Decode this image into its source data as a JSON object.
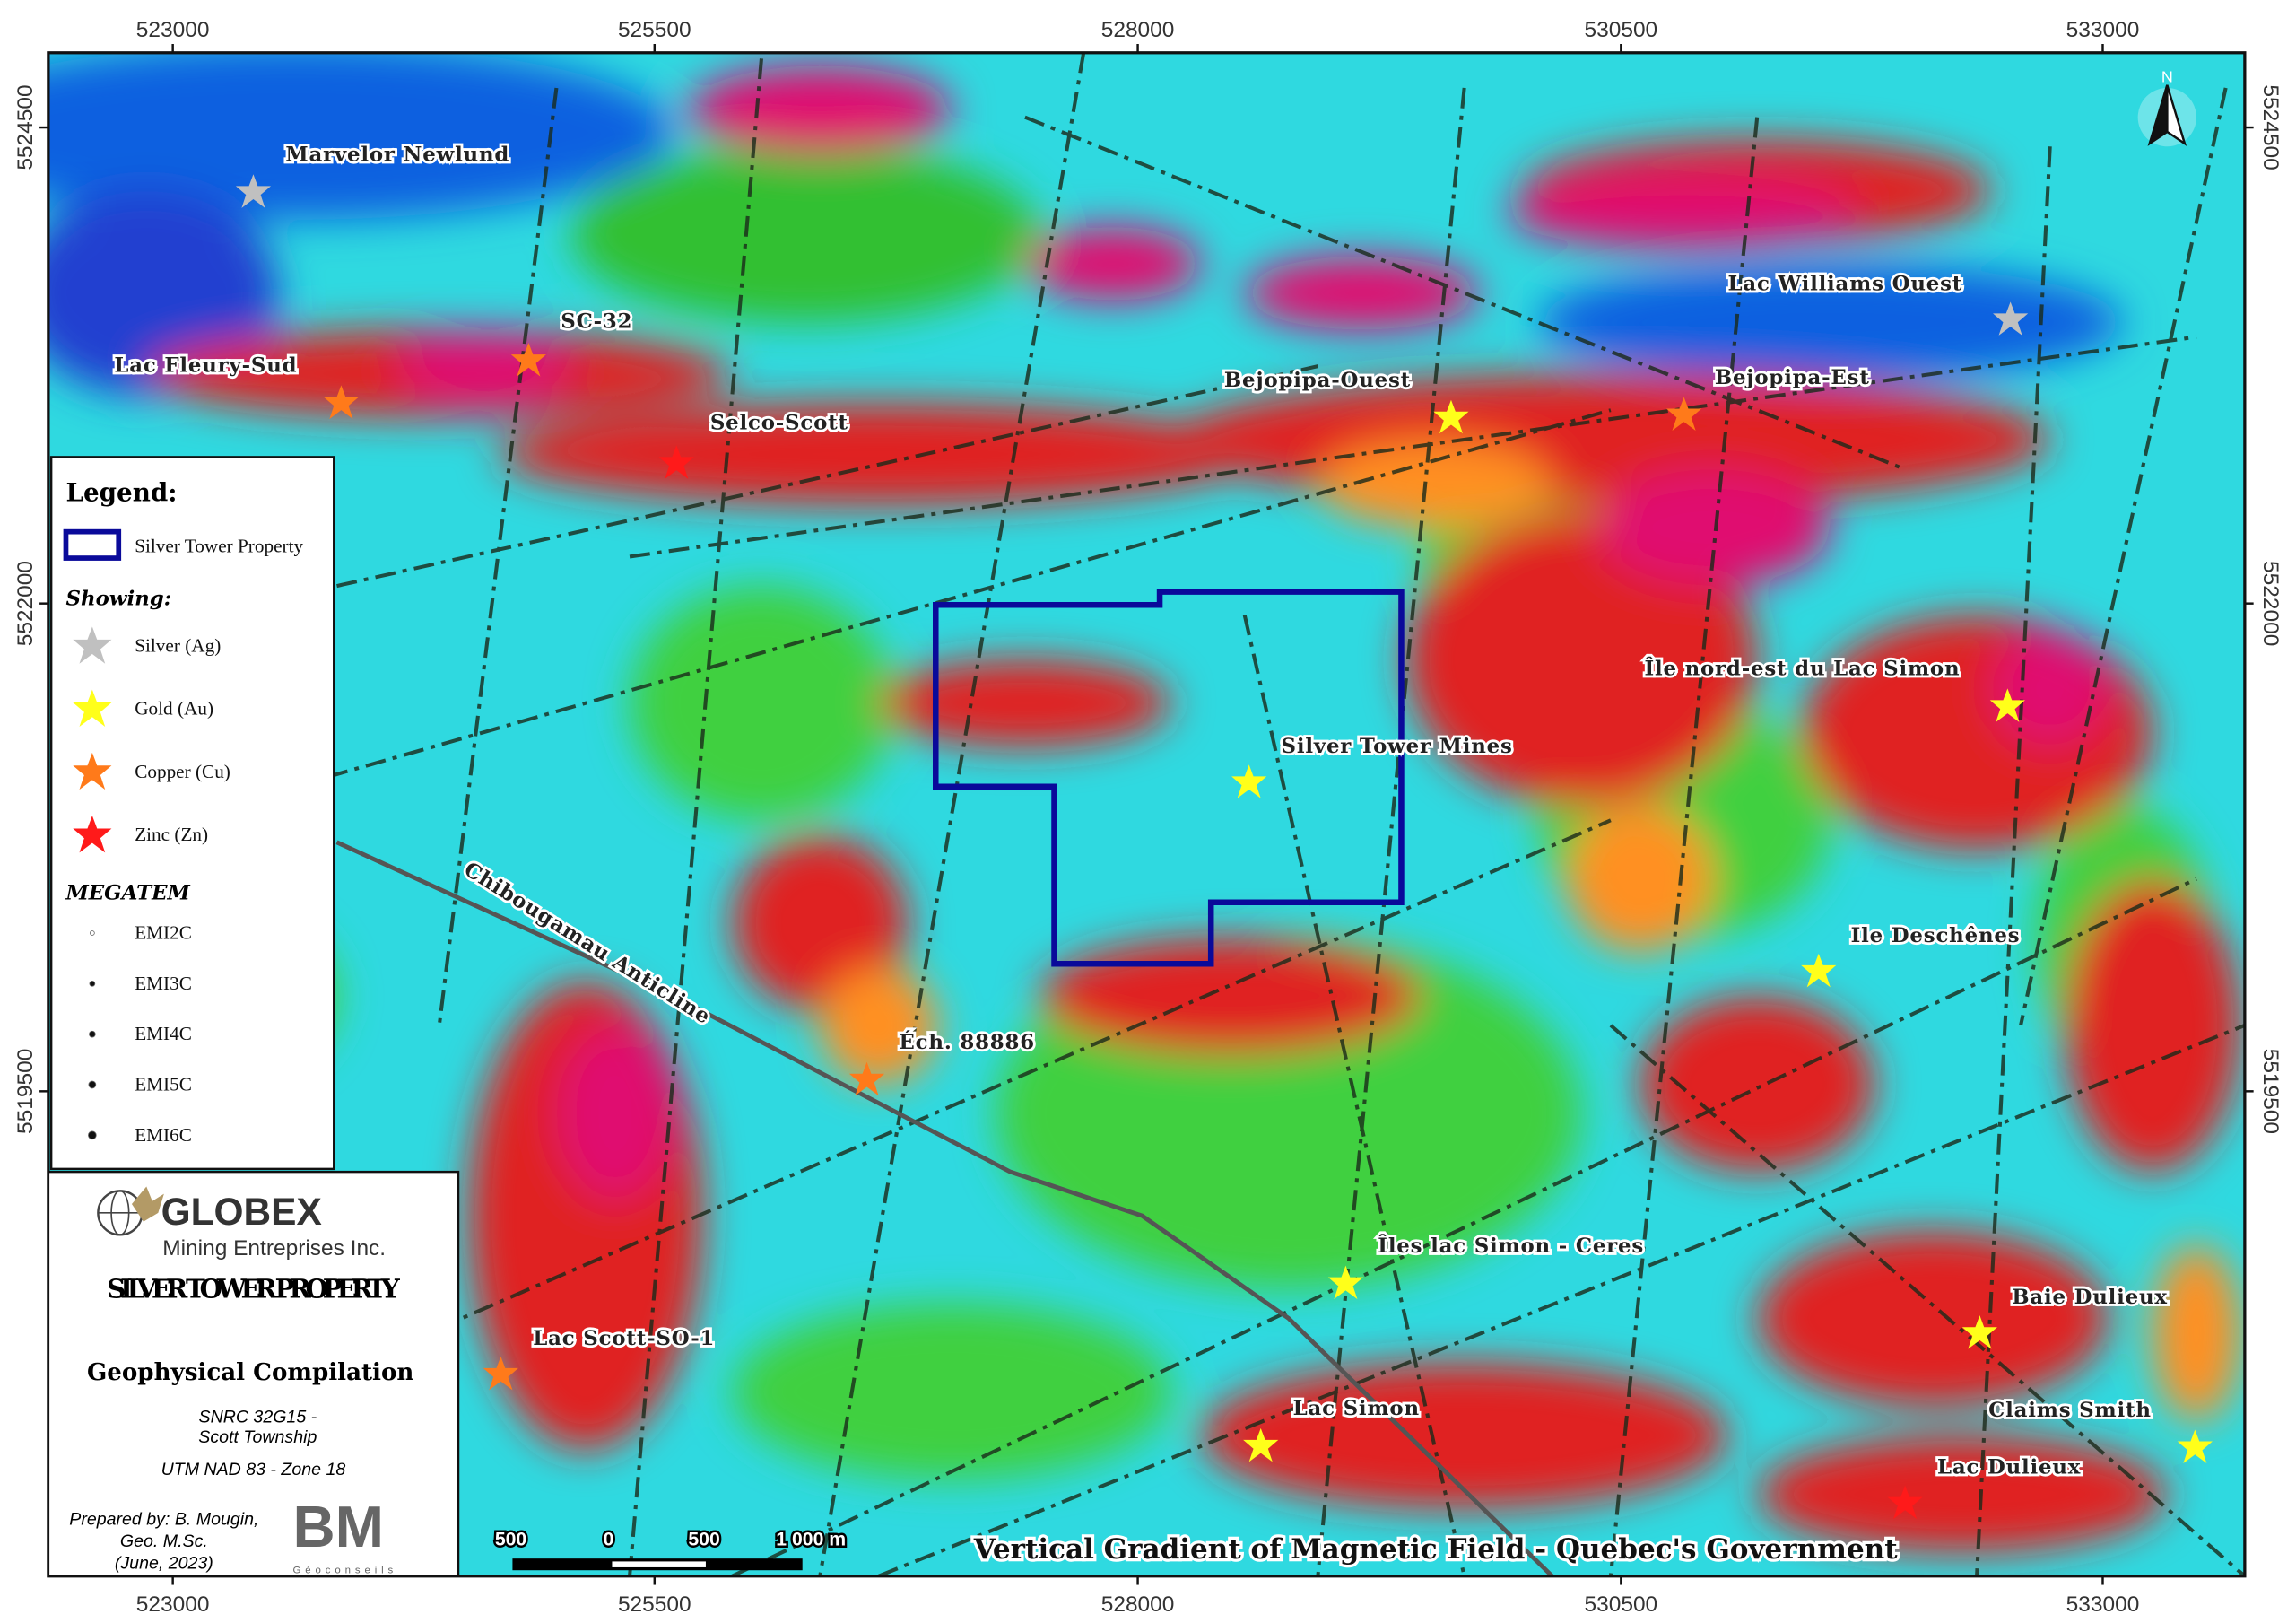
{
  "axes": {
    "x_ticks": [
      "523000",
      "525500",
      "528000",
      "530500",
      "533000"
    ],
    "y_ticks": [
      "5524500",
      "5522000",
      "5519500"
    ]
  },
  "north_arrow": {
    "label": "N"
  },
  "legend": {
    "title": "Legend:",
    "property_label": "Silver Tower Property",
    "property_color": "#0a0a9a",
    "showing_title": "Showing:",
    "showings": [
      {
        "label": "Silver (Ag)",
        "color": "#c0c0c0"
      },
      {
        "label": "Gold (Au)",
        "color": "#ffff1a"
      },
      {
        "label": "Copper (Cu)",
        "color": "#ff7a1a"
      },
      {
        "label": "Zinc (Zn)",
        "color": "#ff1a1a"
      }
    ],
    "megatem_title": "MEGATEM",
    "megatem": [
      "EMI2C",
      "EMI3C",
      "EMI4C",
      "EMI5C",
      "EMI6C"
    ]
  },
  "title_block": {
    "company": "GLOBEX",
    "company_sub": "Mining Entreprises Inc.",
    "title": "SILVER TOWER PROPERTY",
    "subtitle": "Geophysical Compilation",
    "snrc": "SNRC 32G15 -",
    "township": "Scott Township",
    "projection": "UTM NAD 83 - Zone 18",
    "prepared_1": "Prepared by: B. Mougin,",
    "prepared_2": "Geo. M.Sc.",
    "prepared_3": "(June, 2023)",
    "consultant_logo": "BM",
    "consultant_sub": "Géoconseils"
  },
  "scale_bar": [
    "500",
    "0",
    "500",
    "1 000 m"
  ],
  "source_caption": "Vertical Gradient of Magnetic Field - Quebec's Government",
  "anticline_label": "Chibougamau Anticline",
  "showings": [
    {
      "name": "Marvelor Newlund",
      "type": "silver"
    },
    {
      "name": "SC-32",
      "type": "copper"
    },
    {
      "name": "Lac Fleury-Sud",
      "type": "copper"
    },
    {
      "name": "Selco-Scott",
      "type": "zinc"
    },
    {
      "name": "Bejopipa-Ouest",
      "type": "gold"
    },
    {
      "name": "Bejopipa-Est",
      "type": "copper"
    },
    {
      "name": "Lac Williams Ouest",
      "type": "silver"
    },
    {
      "name": "Île nord-est du Lac Simon",
      "type": "gold"
    },
    {
      "name": "Silver Tower Mines",
      "type": "gold"
    },
    {
      "name": "Ile Deschênes",
      "type": "gold"
    },
    {
      "name": "Éch. 88886",
      "type": "copper"
    },
    {
      "name": "Îles lac Simon - Ceres",
      "type": "gold"
    },
    {
      "name": "Baie Dulieux",
      "type": "gold"
    },
    {
      "name": "Lac Scott-SO-1",
      "type": "copper"
    },
    {
      "name": "Lac Simon",
      "type": "gold"
    },
    {
      "name": "Claims Smith",
      "type": "gold"
    },
    {
      "name": "Lac Dulieux",
      "type": "zinc"
    }
  ]
}
